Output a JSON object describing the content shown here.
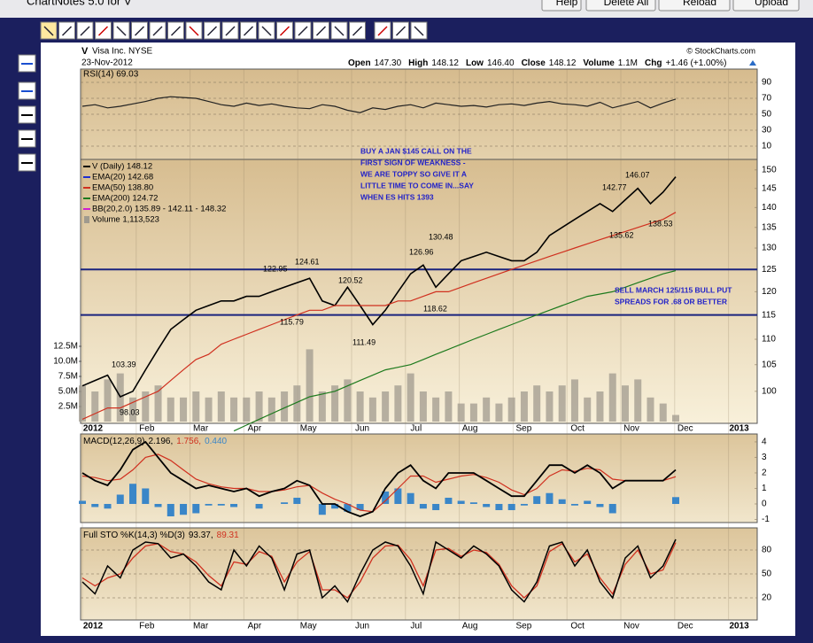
{
  "window": {
    "title": "ChartNotes 5.0 for V",
    "buttons": [
      "Help",
      "Delete All",
      "Reload",
      "Upload"
    ]
  },
  "chart": {
    "symbol": "V",
    "name": "Visa Inc. NYSE",
    "date": "23-Nov-2012",
    "source": "© StockCharts.com",
    "quote": [
      {
        "label": "Open",
        "value": "147.30"
      },
      {
        "label": "High",
        "value": "148.12"
      },
      {
        "label": "Low",
        "value": "146.40"
      },
      {
        "label": "Close",
        "value": "148.12"
      },
      {
        "label": "Volume",
        "value": "1.1M"
      },
      {
        "label": "Chg",
        "value": "+1.46 (+1.00%)"
      }
    ],
    "months": [
      "2012",
      "Feb",
      "Mar",
      "Apr",
      "May",
      "Jun",
      "Jul",
      "Aug",
      "Sep",
      "Oct",
      "Nov",
      "Dec",
      "2013"
    ],
    "rsi": {
      "legend": "RSI(14) 69.03",
      "color": "#222222",
      "ylim": [
        -6.7,
        106.7
      ],
      "yticks": [
        90,
        70,
        50,
        30,
        10
      ],
      "values": [
        60,
        62,
        58,
        60,
        63,
        66,
        70,
        72,
        71,
        70,
        66,
        62,
        60,
        64,
        61,
        63,
        60,
        58,
        57,
        62,
        60,
        55,
        52,
        58,
        56,
        60,
        62,
        58,
        64,
        62,
        60,
        61,
        59,
        62,
        63,
        61,
        64,
        66,
        63,
        62,
        60,
        65,
        58,
        62,
        66,
        58,
        64,
        69.03
      ]
    },
    "price": {
      "log_scale": true,
      "ylim": [
        94.3,
        152.9
      ],
      "yticks": [
        150,
        145,
        140,
        135,
        130,
        125,
        120,
        115,
        110,
        105,
        100
      ],
      "hlines": [
        125,
        115
      ],
      "hline_color": "#1a237e",
      "series": [
        {
          "legend": "V (Daily) 148.12",
          "color": "#000000",
          "values": [
            101,
            102,
            103,
            99,
            100,
            104,
            108,
            112,
            114,
            116,
            117,
            118,
            118,
            119,
            119,
            120,
            121,
            122,
            123,
            118,
            117,
            121,
            117,
            113,
            116,
            120,
            124,
            126,
            121,
            124,
            127,
            128,
            129,
            128,
            127,
            127,
            129,
            133,
            135,
            137,
            139,
            141,
            139,
            142,
            145,
            141,
            144,
            148.12
          ]
        },
        {
          "legend": "EMA(20) 142.68",
          "color": "#1f2fd0"
        },
        {
          "legend": "EMA(50) 138.80",
          "color": "#d0301f",
          "values": [
            95,
            96,
            97,
            97,
            98,
            99,
            100,
            102,
            104,
            106,
            107,
            109,
            110,
            111,
            112,
            113,
            114,
            115,
            116,
            116,
            117,
            117,
            117,
            117,
            117,
            118,
            118,
            119,
            120,
            120,
            121,
            122,
            123,
            124,
            125,
            126,
            127,
            128,
            129,
            130,
            131,
            132,
            133,
            134,
            135,
            136,
            137,
            138.8
          ]
        },
        {
          "legend": "EMA(200) 124.72",
          "color": "#1d7a1d",
          "values": [
            null,
            null,
            null,
            null,
            null,
            null,
            null,
            null,
            null,
            null,
            null,
            null,
            93,
            94,
            95,
            96,
            97,
            98,
            99,
            99.5,
            100,
            101,
            102,
            103,
            104,
            104.5,
            105,
            106,
            107,
            108,
            109,
            110,
            111,
            112,
            113,
            114,
            115,
            116,
            117,
            118,
            119,
            119.5,
            120,
            121,
            122,
            123,
            124,
            124.72
          ]
        },
        {
          "legend": "BB(20,2.0) 135.89 - 142.11 - 148.32",
          "color": "#d020d0"
        }
      ],
      "price_labels": [
        "103.39",
        "98.03",
        "122.95",
        "124.61",
        "115.79",
        "120.52",
        "111.49",
        "118.62",
        "126.96",
        "130.48",
        "142.77",
        "146.07",
        "135.62",
        "138.53"
      ],
      "notes": [
        [
          "BUY A JAN $145 CALL ON THE",
          "FIRST SIGN OF WEAKNESS -",
          "WE ARE TOPPY SO GIVE IT A",
          "LITTLE TIME TO COME IN...SAY",
          "WHEN ES HITS 1393"
        ],
        [
          "SELL MARCH 125/115 BULL PUT",
          "SPREADS FOR .68 OR BETTER"
        ]
      ]
    },
    "volume": {
      "legend": "Volume 1,113,523",
      "color": "#a09a8e",
      "ylim": [
        0,
        12.5
      ],
      "yticks": [
        {
          "value": 12.5,
          "label": "12.5M"
        },
        {
          "value": 10,
          "label": "10.0M"
        },
        {
          "value": 7.5,
          "label": "7.5M"
        },
        {
          "value": 5,
          "label": "5.0M"
        },
        {
          "value": 2.5,
          "label": "2.5M"
        }
      ],
      "values": [
        6,
        5,
        7,
        8,
        4,
        5,
        6,
        4,
        4,
        5,
        4,
        5,
        4,
        4,
        5,
        4,
        5,
        6,
        12,
        5,
        6,
        7,
        5,
        4,
        5,
        6,
        8,
        5,
        4,
        5,
        3,
        3,
        4,
        3,
        4,
        5,
        6,
        5,
        6,
        7,
        4,
        5,
        8,
        6,
        7,
        4,
        3,
        1.1
      ]
    },
    "macd": {
      "legend": "MACD(12,26,9)",
      "legend_values": [
        {
          "text": "2.196,",
          "color": "#000000"
        },
        {
          "text": "1.756,",
          "color": "#d0301f"
        },
        {
          "text": "0.440",
          "color": "#3a86c8"
        }
      ],
      "ylim": [
        -1.2,
        4.51
      ],
      "yticks": [
        4,
        3,
        2,
        1,
        0,
        -1
      ],
      "macd": [
        2,
        1.5,
        1.2,
        2.2,
        3.5,
        4,
        3,
        2,
        1.5,
        1,
        1.2,
        1,
        0.8,
        1,
        0.5,
        0.8,
        1,
        1.5,
        1.2,
        0,
        0,
        -0.5,
        -0.8,
        -0.5,
        1,
        2,
        2.5,
        1.5,
        1,
        2,
        2,
        2,
        1.5,
        1,
        0.5,
        0.5,
        1.5,
        2.5,
        2.5,
        2,
        2.5,
        2,
        1,
        1.5,
        1.5,
        1.5,
        1.5,
        2.196
      ],
      "signal": [
        1.8,
        1.7,
        1.5,
        1.6,
        2.2,
        3,
        3.2,
        2.8,
        2.2,
        1.6,
        1.3,
        1.1,
        1,
        1,
        0.8,
        0.8,
        0.9,
        1.1,
        1.2,
        0.7,
        0.3,
        0,
        -0.4,
        -0.5,
        0.2,
        1,
        1.8,
        1.8,
        1.4,
        1.6,
        1.8,
        1.9,
        1.7,
        1.4,
        0.9,
        0.6,
        1,
        1.8,
        2.2,
        2.1,
        2.3,
        2.2,
        1.6,
        1.5,
        1.5,
        1.5,
        1.5,
        1.756
      ],
      "histogram": [
        0.2,
        -0.2,
        -0.3,
        0.6,
        1.3,
        1,
        -0.2,
        -0.8,
        -0.7,
        -0.6,
        -0.1,
        -0.1,
        -0.2,
        0,
        -0.3,
        0,
        0.1,
        0.4,
        0,
        -0.7,
        -0.3,
        -0.5,
        -0.4,
        0,
        0.8,
        1,
        0.7,
        -0.3,
        -0.4,
        0.4,
        0.2,
        0.1,
        -0.2,
        -0.4,
        -0.4,
        -0.1,
        0.5,
        0.7,
        0.3,
        -0.1,
        0.2,
        -0.2,
        -0.6,
        0,
        0,
        0,
        0,
        0.44
      ]
    },
    "sto": {
      "legend": "Full STO %K(14,3) %D(3)",
      "legend_values": [
        {
          "text": "93.37,",
          "color": "#000000"
        },
        {
          "text": "89.31",
          "color": "#d0301f"
        }
      ],
      "ylim": [
        -7.8,
        107.8
      ],
      "yticks": [
        80,
        50,
        20
      ],
      "k": [
        40,
        25,
        60,
        45,
        80,
        90,
        88,
        70,
        75,
        60,
        40,
        30,
        80,
        60,
        85,
        70,
        30,
        75,
        80,
        20,
        35,
        15,
        50,
        80,
        90,
        85,
        60,
        25,
        90,
        80,
        70,
        85,
        75,
        60,
        30,
        15,
        40,
        85,
        90,
        60,
        80,
        40,
        20,
        70,
        85,
        45,
        60,
        93.37
      ],
      "d": [
        45,
        35,
        45,
        50,
        70,
        85,
        88,
        78,
        75,
        65,
        48,
        35,
        65,
        62,
        78,
        72,
        40,
        65,
        78,
        30,
        30,
        20,
        40,
        70,
        85,
        86,
        68,
        35,
        80,
        82,
        72,
        80,
        77,
        62,
        35,
        20,
        35,
        78,
        88,
        65,
        75,
        45,
        25,
        62,
        80,
        50,
        55,
        89.31
      ]
    }
  }
}
